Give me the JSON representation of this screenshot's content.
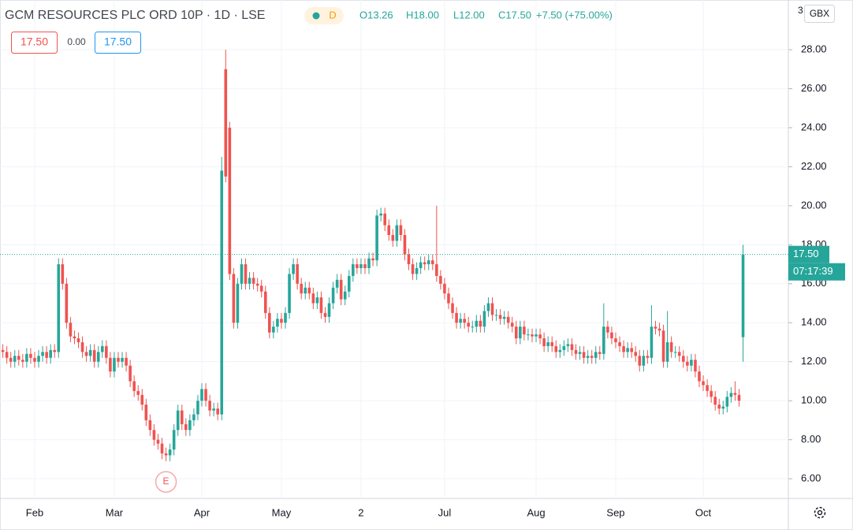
{
  "header": {
    "title": "GCM RESOURCES PLC ORD 10P · 1D · LSE",
    "badge": "D",
    "ohlc": [
      "O13.26",
      "H18.00",
      "L12.00",
      "C17.50",
      "+7.50 (+75.00%)"
    ],
    "boxes": [
      "17.50",
      "0.00",
      "17.50"
    ],
    "currency": "GBX",
    "countdown": "07:17:39",
    "partial_tick": "3"
  },
  "chart_data": {
    "type": "candlestick",
    "up_color": "#26a69a",
    "down_color": "#ef5350",
    "grid": true,
    "ylim": [
      4.99,
      30.55
    ],
    "yticks": [
      {
        "value": 6,
        "label": "6.00"
      },
      {
        "value": 8,
        "label": "8.00"
      },
      {
        "value": 10,
        "label": "10.00"
      },
      {
        "value": 12,
        "label": "12.00"
      },
      {
        "value": 14,
        "label": "14.00"
      },
      {
        "value": 16,
        "label": "16.00"
      },
      {
        "value": 18,
        "label": "18.00"
      },
      {
        "value": 20,
        "label": "20.00"
      },
      {
        "value": 22,
        "label": "22.00"
      },
      {
        "value": 24,
        "label": "24.00"
      },
      {
        "value": 26,
        "label": "26.00"
      },
      {
        "value": 28,
        "label": "28.00"
      }
    ],
    "last_price": {
      "value": 17.5,
      "label": "17.50"
    },
    "annotations": [
      {
        "text": "E",
        "index": 41
      }
    ],
    "categories": [
      null,
      null,
      null,
      null,
      null,
      null,
      null,
      null,
      "Feb",
      null,
      null,
      null,
      null,
      null,
      null,
      null,
      null,
      null,
      null,
      null,
      null,
      null,
      null,
      null,
      null,
      null,
      null,
      null,
      "Mar",
      null,
      null,
      null,
      null,
      null,
      null,
      null,
      null,
      null,
      null,
      null,
      null,
      null,
      null,
      null,
      null,
      null,
      null,
      null,
      null,
      null,
      "Apr",
      null,
      null,
      null,
      null,
      null,
      null,
      null,
      null,
      null,
      null,
      null,
      null,
      null,
      null,
      null,
      null,
      null,
      null,
      null,
      "May",
      null,
      null,
      null,
      null,
      null,
      null,
      null,
      null,
      null,
      null,
      null,
      null,
      null,
      null,
      null,
      null,
      null,
      null,
      null,
      "2",
      null,
      null,
      null,
      null,
      null,
      null,
      null,
      null,
      null,
      null,
      null,
      null,
      null,
      null,
      null,
      null,
      null,
      null,
      null,
      null,
      "Jul",
      null,
      null,
      null,
      null,
      null,
      null,
      null,
      null,
      null,
      null,
      null,
      null,
      null,
      null,
      null,
      null,
      null,
      null,
      null,
      null,
      null,
      null,
      "Aug",
      null,
      null,
      null,
      null,
      null,
      null,
      null,
      null,
      null,
      null,
      null,
      null,
      null,
      null,
      null,
      null,
      null,
      null,
      null,
      "Sep",
      null,
      null,
      null,
      null,
      null,
      null,
      null,
      null,
      null,
      null,
      null,
      null,
      null,
      null,
      null,
      null,
      null,
      null,
      null,
      null,
      null,
      "Oct",
      null,
      null,
      null,
      null,
      null,
      null,
      null,
      null,
      null,
      null
    ],
    "open": [
      12.6,
      12.5,
      12.2,
      12.0,
      12.3,
      12.1,
      12.0,
      12.4,
      12.2,
      12.0,
      12.3,
      12.5,
      12.2,
      12.6,
      12.5,
      17.0,
      16.0,
      14.0,
      13.3,
      13.2,
      13.0,
      12.5,
      12.3,
      12.6,
      12.0,
      12.5,
      12.8,
      12.2,
      11.5,
      12.2,
      12.0,
      12.2,
      11.8,
      11.0,
      10.5,
      10.3,
      9.8,
      9.0,
      8.5,
      8.0,
      7.8,
      7.3,
      7.2,
      7.5,
      8.5,
      9.5,
      8.8,
      8.5,
      9.0,
      9.3,
      10.0,
      10.6,
      10.0,
      9.5,
      9.6,
      9.3,
      27.0,
      24.0,
      16.5,
      14.0,
      16.0,
      17.0,
      16.0,
      16.3,
      16.0,
      15.9,
      15.6,
      14.5,
      13.5,
      13.8,
      14.2,
      14.0,
      14.5,
      16.5,
      17.0,
      16.0,
      15.5,
      15.8,
      15.5,
      15.0,
      15.3,
      14.5,
      14.3,
      15.0,
      15.8,
      16.2,
      15.2,
      15.6,
      16.4,
      17.0,
      16.8,
      17.0,
      16.8,
      17.3,
      17.2,
      19.5,
      19.6,
      19.0,
      18.5,
      18.2,
      19.0,
      18.5,
      17.5,
      17.0,
      16.5,
      16.8,
      17.1,
      17.0,
      17.2,
      17.0,
      16.4,
      16.0,
      15.5,
      15.0,
      14.5,
      14.0,
      14.2,
      14.0,
      13.8,
      13.8,
      14.1,
      13.8,
      14.6,
      15.0,
      14.4,
      14.4,
      14.2,
      14.3,
      14.0,
      13.8,
      13.2,
      13.8,
      13.4,
      13.4,
      13.3,
      13.4,
      13.2,
      12.8,
      13.0,
      12.8,
      12.5,
      12.6,
      12.8,
      12.9,
      12.6,
      12.4,
      12.5,
      12.2,
      12.3,
      12.2,
      12.5,
      12.4,
      13.8,
      13.5,
      13.2,
      13.0,
      12.8,
      12.5,
      12.7,
      12.5,
      12.3,
      11.8,
      12.3,
      12.2,
      13.8,
      13.7,
      13.6,
      12.0,
      13.0,
      12.5,
      12.5,
      12.3,
      12.0,
      11.8,
      12.1,
      11.5,
      11.0,
      10.8,
      10.5,
      10.2,
      9.8,
      9.6,
      9.7,
      10.2,
      10.4,
      10.3,
      13.26
    ],
    "high": [
      12.9,
      12.8,
      12.5,
      12.6,
      12.6,
      12.4,
      12.7,
      12.7,
      12.5,
      12.6,
      12.8,
      12.8,
      12.9,
      12.9,
      17.3,
      17.3,
      16.3,
      14.3,
      13.6,
      13.5,
      13.3,
      12.8,
      12.9,
      12.9,
      12.8,
      13.1,
      13.1,
      12.5,
      12.5,
      12.5,
      12.5,
      12.5,
      12.1,
      11.3,
      10.8,
      10.6,
      10.1,
      9.3,
      8.8,
      8.3,
      8.1,
      7.6,
      7.8,
      8.8,
      9.8,
      9.8,
      9.1,
      9.3,
      9.6,
      10.3,
      10.9,
      10.9,
      10.3,
      9.9,
      9.9,
      22.5,
      28.0,
      24.3,
      16.8,
      16.3,
      17.3,
      17.3,
      16.6,
      16.6,
      16.3,
      16.2,
      15.9,
      14.8,
      14.1,
      14.5,
      14.5,
      14.8,
      16.8,
      17.3,
      17.3,
      16.3,
      16.1,
      16.1,
      15.8,
      15.6,
      15.6,
      14.8,
      15.3,
      16.1,
      16.5,
      16.5,
      15.9,
      16.7,
      17.3,
      17.3,
      17.3,
      17.3,
      17.6,
      17.6,
      19.8,
      19.9,
      19.9,
      19.3,
      18.8,
      19.3,
      19.3,
      18.8,
      17.8,
      17.3,
      17.1,
      17.4,
      17.4,
      17.5,
      17.5,
      20.0,
      16.7,
      16.3,
      15.8,
      15.3,
      14.8,
      14.5,
      14.5,
      14.3,
      14.1,
      14.4,
      14.4,
      14.9,
      15.3,
      15.3,
      14.7,
      14.7,
      14.6,
      14.6,
      14.3,
      14.1,
      14.1,
      14.1,
      13.7,
      13.7,
      13.7,
      13.7,
      13.5,
      13.3,
      13.3,
      13.1,
      12.9,
      13.1,
      13.2,
      13.2,
      12.9,
      12.8,
      12.8,
      12.6,
      12.6,
      12.8,
      12.8,
      15.0,
      14.1,
      13.8,
      13.5,
      13.3,
      13.1,
      13.0,
      13.0,
      12.8,
      12.6,
      12.6,
      12.6,
      14.9,
      14.1,
      14.0,
      13.9,
      14.6,
      13.3,
      12.8,
      12.8,
      12.6,
      12.3,
      12.4,
      12.4,
      11.8,
      11.3,
      11.1,
      10.8,
      10.5,
      10.1,
      10.0,
      10.5,
      10.7,
      11.0,
      10.6,
      18.0
    ],
    "low": [
      12.2,
      11.9,
      11.7,
      11.7,
      11.8,
      11.7,
      11.7,
      11.9,
      11.7,
      11.7,
      12.0,
      11.9,
      11.9,
      12.2,
      12.2,
      15.7,
      13.7,
      13.0,
      12.9,
      12.7,
      12.2,
      12.0,
      12.0,
      11.7,
      11.7,
      12.2,
      11.9,
      11.2,
      11.2,
      11.7,
      11.7,
      11.5,
      10.7,
      10.2,
      10.0,
      9.5,
      8.7,
      8.2,
      7.7,
      7.5,
      7.0,
      6.9,
      6.9,
      7.2,
      8.2,
      8.5,
      8.2,
      8.2,
      8.7,
      9.0,
      9.7,
      9.7,
      9.2,
      9.2,
      9.0,
      9.0,
      21.2,
      16.2,
      13.7,
      13.7,
      15.7,
      15.7,
      15.7,
      15.7,
      15.6,
      15.3,
      14.2,
      13.2,
      13.2,
      13.5,
      13.7,
      13.7,
      14.2,
      16.2,
      15.7,
      15.2,
      15.2,
      15.2,
      14.7,
      14.7,
      14.2,
      14.0,
      14.0,
      14.7,
      15.5,
      14.9,
      14.9,
      15.3,
      16.1,
      16.5,
      16.5,
      16.5,
      16.5,
      16.9,
      16.9,
      19.2,
      18.7,
      18.2,
      17.9,
      17.9,
      18.2,
      17.2,
      16.7,
      16.2,
      16.2,
      16.5,
      16.7,
      16.7,
      16.7,
      16.1,
      15.7,
      15.2,
      14.7,
      14.2,
      13.7,
      13.7,
      13.7,
      13.5,
      13.5,
      13.5,
      13.5,
      13.5,
      14.3,
      14.1,
      14.1,
      13.9,
      13.9,
      13.7,
      13.5,
      12.9,
      12.9,
      13.1,
      13.1,
      13.0,
      13.0,
      12.9,
      12.5,
      12.5,
      12.5,
      12.2,
      12.2,
      12.3,
      12.5,
      12.3,
      12.1,
      12.1,
      11.9,
      11.9,
      11.9,
      11.9,
      12.1,
      12.1,
      13.2,
      12.9,
      12.7,
      12.5,
      12.2,
      12.2,
      12.2,
      12.0,
      11.5,
      11.5,
      11.9,
      11.9,
      13.4,
      13.3,
      11.7,
      11.7,
      12.2,
      12.2,
      12.0,
      11.7,
      11.5,
      11.5,
      11.2,
      10.7,
      10.5,
      10.2,
      9.9,
      9.5,
      9.3,
      9.3,
      9.4,
      9.9,
      10.0,
      9.7,
      12.0
    ],
    "close": [
      12.5,
      12.2,
      12.0,
      12.3,
      12.1,
      12.0,
      12.4,
      12.2,
      12.0,
      12.3,
      12.5,
      12.2,
      12.6,
      12.5,
      17.0,
      16.0,
      14.0,
      13.3,
      13.2,
      13.0,
      12.5,
      12.3,
      12.6,
      12.0,
      12.5,
      12.8,
      12.2,
      11.5,
      12.2,
      12.0,
      12.2,
      11.8,
      11.0,
      10.5,
      10.3,
      9.8,
      9.0,
      8.5,
      8.0,
      7.8,
      7.3,
      7.2,
      7.5,
      8.5,
      9.5,
      8.8,
      8.5,
      9.0,
      9.3,
      10.0,
      10.6,
      10.0,
      9.5,
      9.6,
      9.3,
      21.8,
      21.5,
      16.5,
      14.0,
      16.0,
      17.0,
      16.0,
      16.3,
      16.0,
      15.9,
      15.6,
      14.5,
      13.5,
      13.8,
      14.2,
      14.0,
      14.5,
      16.5,
      17.0,
      16.0,
      15.5,
      15.8,
      15.5,
      15.0,
      15.3,
      14.5,
      14.3,
      15.0,
      15.8,
      16.2,
      15.2,
      15.6,
      16.4,
      17.0,
      16.8,
      17.0,
      16.8,
      17.3,
      17.2,
      19.5,
      19.6,
      19.0,
      18.5,
      18.2,
      19.0,
      18.5,
      17.5,
      17.0,
      16.5,
      16.8,
      17.1,
      17.0,
      17.2,
      17.0,
      16.4,
      16.0,
      15.5,
      15.0,
      14.5,
      14.0,
      14.2,
      14.0,
      13.8,
      13.8,
      14.1,
      13.8,
      14.6,
      15.0,
      14.4,
      14.4,
      14.2,
      14.3,
      14.0,
      13.8,
      13.2,
      13.8,
      13.4,
      13.4,
      13.3,
      13.4,
      13.2,
      12.8,
      13.0,
      12.8,
      12.5,
      12.6,
      12.8,
      12.9,
      12.6,
      12.4,
      12.5,
      12.2,
      12.3,
      12.2,
      12.5,
      12.4,
      13.8,
      13.5,
      13.2,
      13.0,
      12.8,
      12.5,
      12.7,
      12.5,
      12.3,
      11.8,
      12.3,
      12.2,
      13.8,
      13.7,
      13.6,
      12.0,
      13.0,
      12.5,
      12.5,
      12.3,
      12.0,
      11.8,
      12.1,
      11.5,
      11.0,
      10.8,
      10.5,
      10.2,
      9.8,
      9.6,
      9.7,
      10.2,
      10.4,
      10.3,
      10.0,
      17.5
    ]
  }
}
